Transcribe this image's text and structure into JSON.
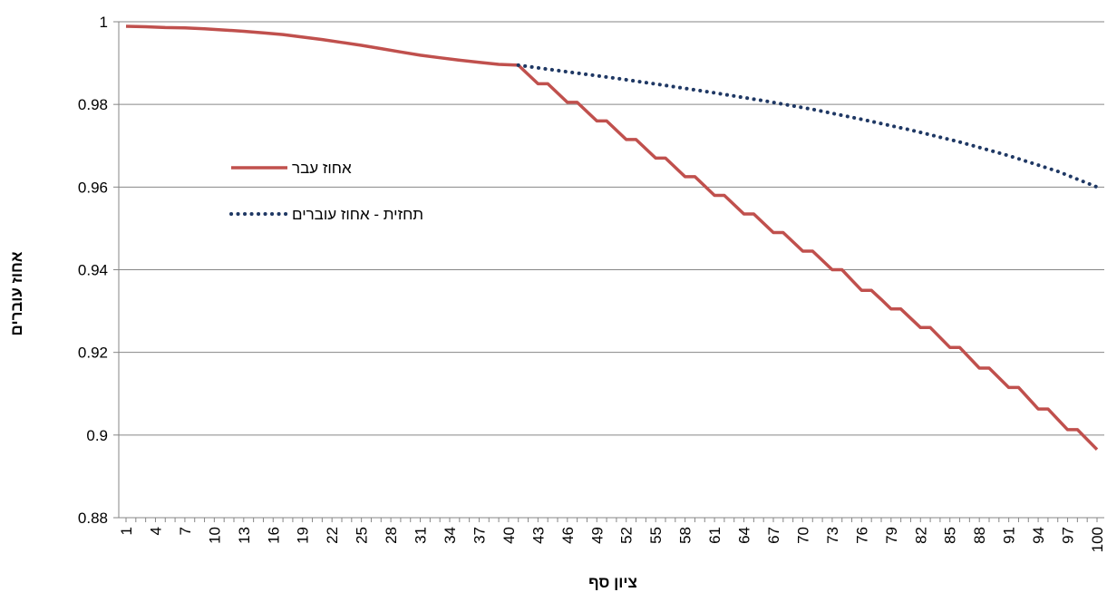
{
  "chart_data": {
    "type": "line",
    "title": "",
    "xlabel": "ציון סף",
    "ylabel": "אחוז עוברים",
    "ylim": [
      0.88,
      1
    ],
    "yticks": [
      0.88,
      0.9,
      0.92,
      0.94,
      0.96,
      0.98,
      1
    ],
    "ytick_labels": [
      "0.88",
      "0.9",
      "0.92",
      "0.94",
      "0.96",
      "0.98",
      "1"
    ],
    "xlim": [
      1,
      100
    ],
    "xticks": [
      1,
      4,
      7,
      10,
      13,
      16,
      19,
      22,
      25,
      28,
      31,
      34,
      37,
      40,
      43,
      46,
      49,
      52,
      55,
      58,
      61,
      64,
      67,
      70,
      73,
      76,
      79,
      82,
      85,
      88,
      91,
      94,
      97,
      100
    ],
    "xtick_labels": [
      "1",
      "4",
      "7",
      "10",
      "13",
      "16",
      "19",
      "22",
      "25",
      "28",
      "31",
      "34",
      "37",
      "40",
      "43",
      "46",
      "49",
      "52",
      "55",
      "58",
      "61",
      "64",
      "67",
      "70",
      "73",
      "76",
      "79",
      "82",
      "85",
      "88",
      "91",
      "94",
      "97",
      "100"
    ],
    "grid": "horizontal",
    "legend_position": "left",
    "series": [
      {
        "name": "אחוז עבר",
        "color": "#c0504d",
        "style": "solid",
        "x": [
          1,
          3,
          5,
          7,
          9,
          11,
          13,
          15,
          17,
          19,
          21,
          23,
          25,
          27,
          29,
          31,
          33,
          35,
          37,
          39,
          41,
          43,
          44,
          46,
          47,
          49,
          50,
          52,
          53,
          55,
          56,
          58,
          59,
          61,
          62,
          64,
          65,
          67,
          68,
          70,
          71,
          73,
          74,
          75,
          76,
          77,
          78,
          79,
          80,
          82,
          83,
          85,
          86,
          88,
          89,
          91,
          92,
          94,
          95,
          97,
          98,
          100
        ],
        "y": [
          0.9989,
          0.9988,
          0.9986,
          0.9985,
          0.9983,
          0.998,
          0.9977,
          0.9973,
          0.9969,
          0.9963,
          0.9957,
          0.995,
          0.9943,
          0.9935,
          0.9927,
          0.9919,
          0.9913,
          0.9907,
          0.9902,
          0.9897,
          0.9895,
          0.985,
          0.985,
          0.9805,
          0.9805,
          0.976,
          0.976,
          0.9715,
          0.9715,
          0.967,
          0.967,
          0.9625,
          0.9625,
          0.958,
          0.958,
          0.9535,
          0.9535,
          0.949,
          0.949,
          0.9445,
          0.9445,
          0.94,
          0.94,
          0.9375,
          0.935,
          0.935,
          0.9328,
          0.9305,
          0.9305,
          0.926,
          0.926,
          0.9212,
          0.9212,
          0.9162,
          0.9162,
          0.9115,
          0.9115,
          0.9063,
          0.9063,
          0.9013,
          0.9013,
          0.8965
        ]
      },
      {
        "name": "תחזית - אחוז עוברים",
        "color": "#1f3864",
        "style": "dotted",
        "x": [
          41,
          46,
          51,
          56,
          61,
          66,
          71,
          76,
          81,
          86,
          91,
          96,
          100
        ],
        "y": [
          0.9895,
          0.9879,
          0.9863,
          0.9846,
          0.9828,
          0.9809,
          0.9788,
          0.9764,
          0.9738,
          0.9709,
          0.9676,
          0.9638,
          0.96
        ]
      }
    ]
  }
}
